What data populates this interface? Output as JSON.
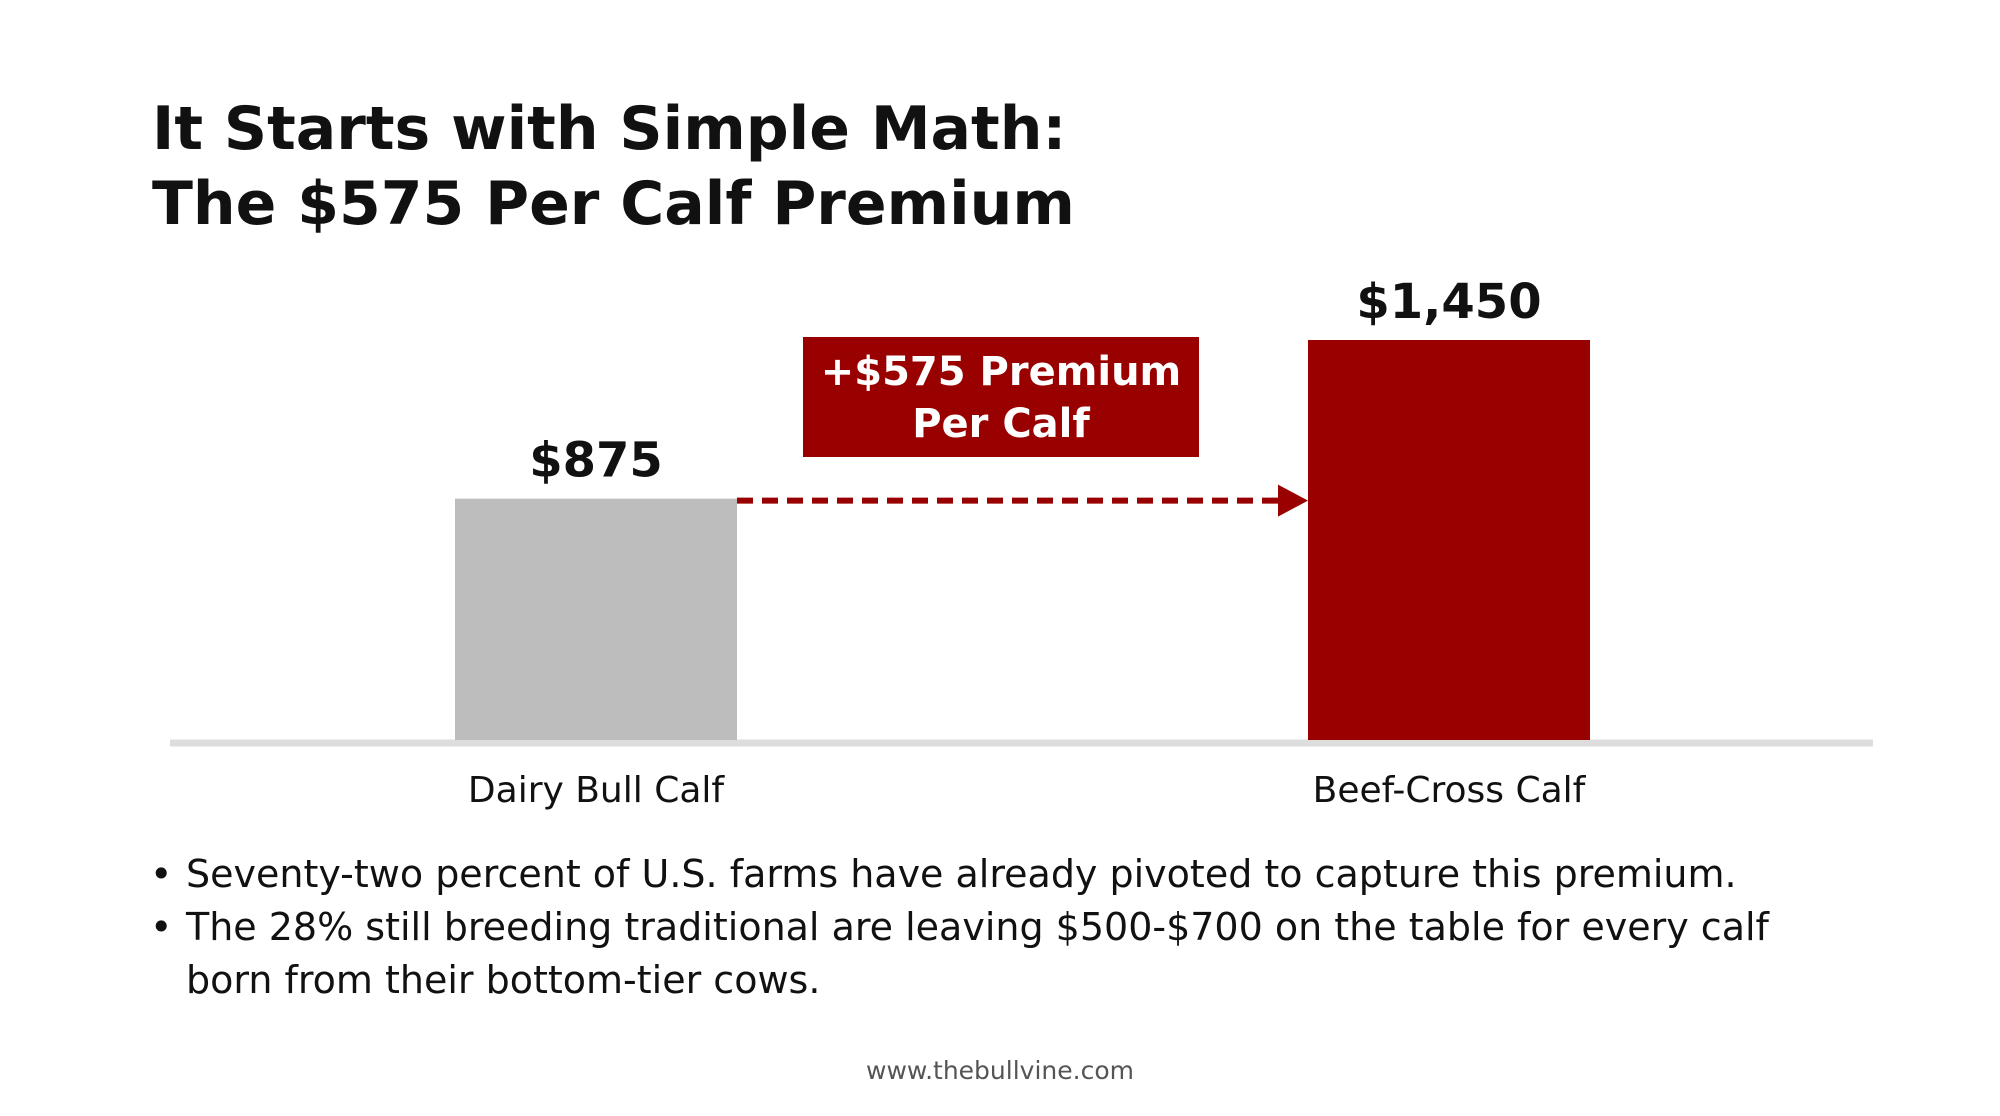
{
  "title": {
    "line1": "It Starts with Simple Math:",
    "line2": "The $575 Per Calf Premium"
  },
  "chart_data": {
    "type": "bar",
    "categories": [
      "Dairy Bull Calf",
      "Beef-Cross Calf"
    ],
    "values": [
      875,
      1450
    ],
    "value_labels": [
      "$875",
      "$1,450"
    ],
    "colors": [
      "#bdbdbd",
      "#990000"
    ],
    "ylim": [
      0,
      1450
    ],
    "grid": false,
    "annotation": {
      "line1": "+$575 Premium",
      "line2": "Per Calf",
      "color": "#990000",
      "arrow_style": "dashed",
      "arrow_from": "Dairy Bull Calf",
      "arrow_to": "Beef-Cross Calf"
    }
  },
  "bullets": [
    "Seventy-two percent of U.S. farms have already pivoted to capture this premium.",
    "The 28% still breeding traditional are leaving $500-$700 on the table for every calf born from their bottom-tier cows."
  ],
  "footer": "www.thebullvine.com",
  "colors": {
    "accent": "#990000",
    "neutral_bar": "#bdbdbd",
    "baseline": "#dddddd",
    "text": "#111111"
  }
}
